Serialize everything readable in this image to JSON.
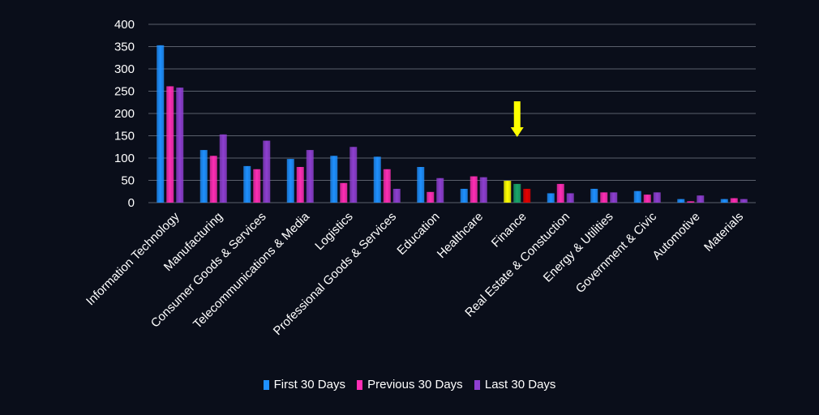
{
  "chart_data": {
    "type": "bar",
    "title": "",
    "xlabel": "",
    "ylabel": "",
    "ylim": [
      0,
      400
    ],
    "yticks": [
      0,
      50,
      100,
      150,
      200,
      250,
      300,
      350,
      400
    ],
    "grid": true,
    "legend_position": "bottom",
    "categories": [
      "Information Technology",
      "Manufacturing",
      "Consumer Goods &  Services",
      "Telecommunications & Media",
      "Logistics",
      "Professional Goods & Services",
      "Education",
      "Healthcare",
      "Finance",
      "Real Estate & Constuction",
      "Energy & Utilities",
      "Government & Civic",
      "Automotive",
      "Materials"
    ],
    "series": [
      {
        "name": "First 30 Days",
        "color": "#1e90ff",
        "values": [
          353,
          118,
          82,
          98,
          105,
          103,
          80,
          31,
          49,
          21,
          31,
          26,
          8,
          8
        ]
      },
      {
        "name": "Previous 30 Days",
        "color": "#ff2db4",
        "values": [
          261,
          105,
          75,
          80,
          44,
          75,
          24,
          59,
          42,
          42,
          23,
          18,
          3,
          10
        ]
      },
      {
        "name": "Last 30 Days",
        "color": "#8e3fd0",
        "values": [
          258,
          153,
          139,
          118,
          125,
          31,
          55,
          57,
          31,
          21,
          23,
          23,
          16,
          8
        ]
      }
    ],
    "highlight": {
      "category": "Finance",
      "bar_colors": [
        "#ffff00",
        "#1aa66a",
        "#e60000"
      ],
      "arrow_color": "#ffff00"
    }
  }
}
